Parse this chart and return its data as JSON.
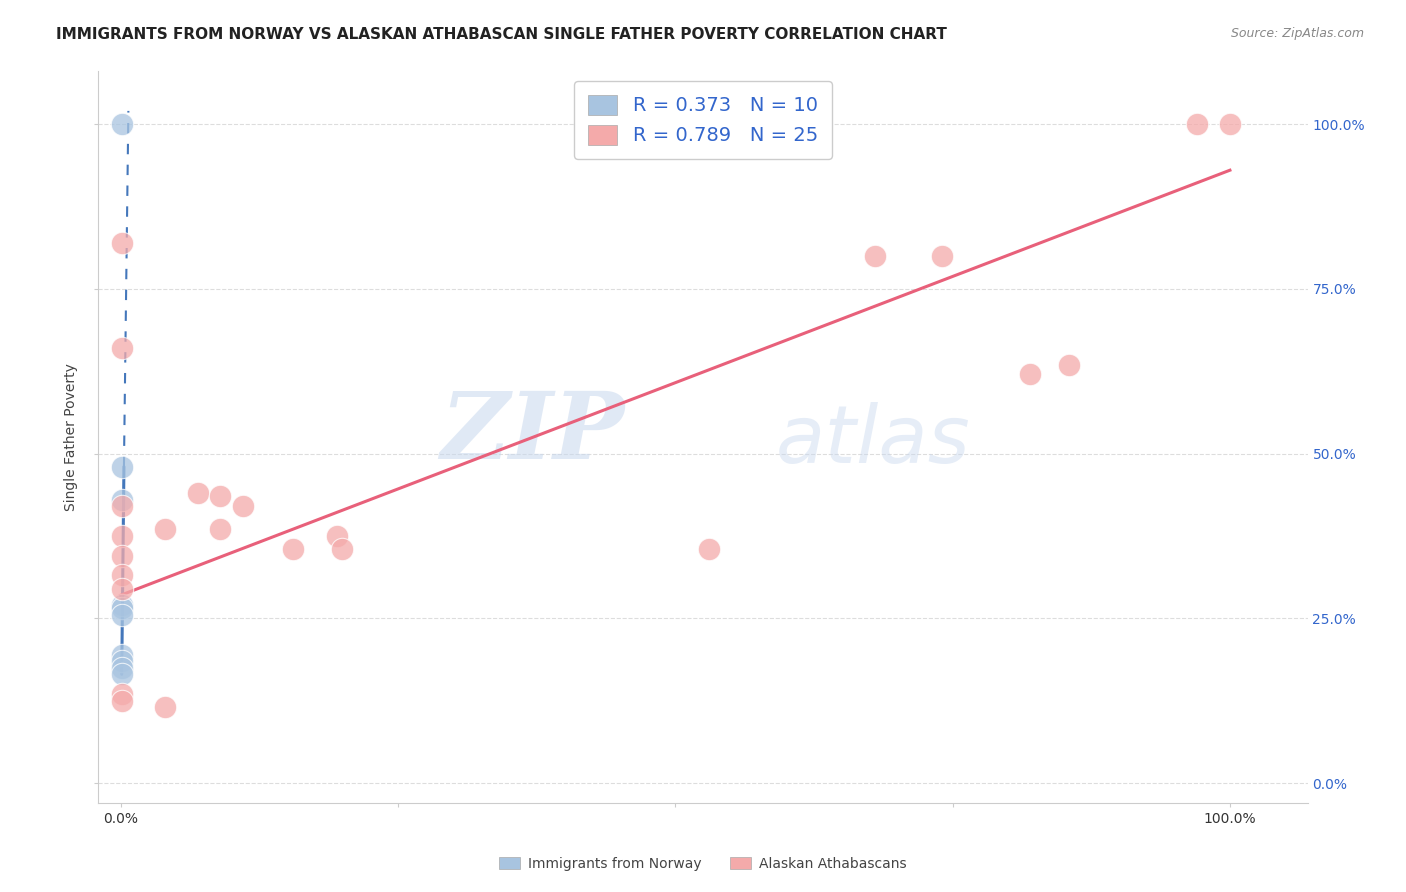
{
  "title": "IMMIGRANTS FROM NORWAY VS ALASKAN ATHABASCAN SINGLE FATHER POVERTY CORRELATION CHART",
  "source": "Source: ZipAtlas.com",
  "ylabel": "Single Father Poverty",
  "legend_label1": "R = 0.373   N = 10",
  "legend_label2": "R = 0.789   N = 25",
  "bottom_legend1": "Immigrants from Norway",
  "bottom_legend2": "Alaskan Athabascans",
  "color_blue": "#A8C4E0",
  "color_pink": "#F4AAAA",
  "color_blue_line": "#4477BB",
  "color_pink_line": "#E8607A",
  "color_blue_text": "#3366CC",
  "background_color": "#FFFFFF",
  "grid_color": "#DDDDDD",
  "norway_points": [
    [
      0.001,
      1.0
    ],
    [
      0.001,
      0.48
    ],
    [
      0.001,
      0.43
    ],
    [
      0.001,
      0.27
    ],
    [
      0.001,
      0.265
    ],
    [
      0.001,
      0.255
    ],
    [
      0.001,
      0.195
    ],
    [
      0.001,
      0.185
    ],
    [
      0.001,
      0.175
    ],
    [
      0.001,
      0.165
    ]
  ],
  "athabascan_points": [
    [
      0.001,
      0.82
    ],
    [
      0.001,
      0.66
    ],
    [
      0.001,
      0.42
    ],
    [
      0.001,
      0.375
    ],
    [
      0.001,
      0.345
    ],
    [
      0.001,
      0.315
    ],
    [
      0.001,
      0.295
    ],
    [
      0.001,
      0.135
    ],
    [
      0.001,
      0.125
    ],
    [
      0.04,
      0.385
    ],
    [
      0.04,
      0.115
    ],
    [
      0.07,
      0.44
    ],
    [
      0.09,
      0.435
    ],
    [
      0.09,
      0.385
    ],
    [
      0.11,
      0.42
    ],
    [
      0.155,
      0.355
    ],
    [
      0.195,
      0.375
    ],
    [
      0.2,
      0.355
    ],
    [
      0.53,
      0.355
    ],
    [
      0.68,
      0.8
    ],
    [
      0.74,
      0.8
    ],
    [
      0.82,
      0.62
    ],
    [
      0.855,
      0.635
    ],
    [
      0.97,
      1.0
    ],
    [
      1.0,
      1.0
    ]
  ],
  "norway_solid_line": [
    [
      0.001,
      0.165
    ],
    [
      0.003,
      0.48
    ]
  ],
  "norway_dashed_line": [
    [
      0.003,
      0.48
    ],
    [
      0.007,
      1.02
    ]
  ],
  "athabascan_trendline": [
    [
      0.0,
      0.285
    ],
    [
      1.0,
      0.93
    ]
  ],
  "watermark_zip": "ZIP",
  "watermark_atlas": "atlas",
  "xlim": [
    -0.02,
    1.07
  ],
  "ylim": [
    -0.03,
    1.08
  ],
  "yticks": [
    0.0,
    0.25,
    0.5,
    0.75,
    1.0
  ],
  "xticks": [
    0.0,
    0.25,
    0.5,
    0.75,
    1.0
  ],
  "title_fontsize": 11,
  "source_fontsize": 9,
  "tick_fontsize": 10,
  "legend_fontsize": 14
}
